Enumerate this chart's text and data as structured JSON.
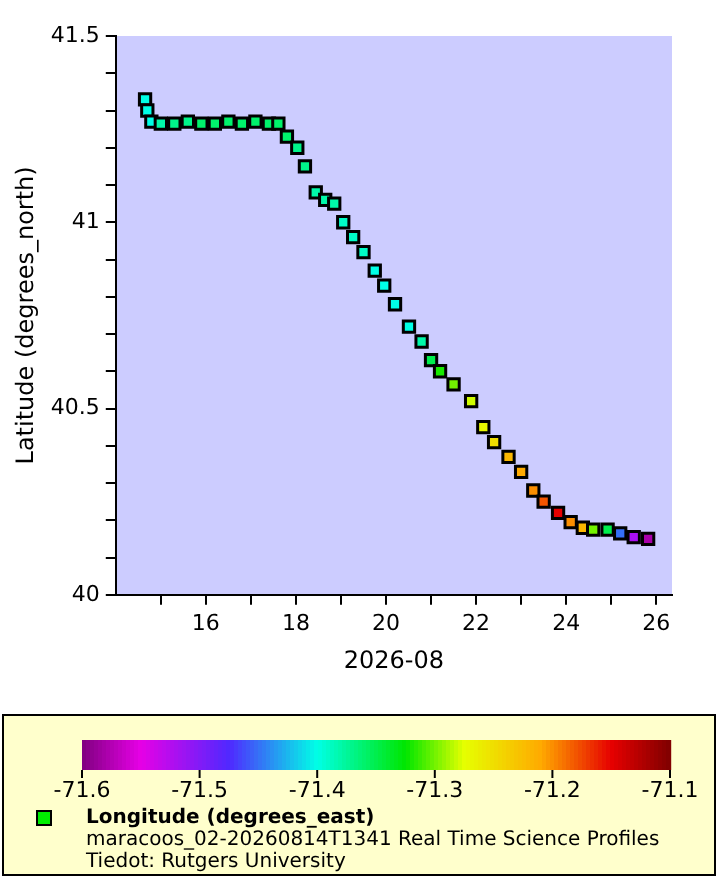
{
  "chart_data": {
    "type": "scatter",
    "xlabel": "2026-08",
    "ylabel": "Latitude (degrees_north)",
    "clabel": "Longitude (degrees_east)",
    "annotations": [
      "maracoos_02-20260814T1341 Real Time Science Profiles",
      "Tiedot: Rutgers University"
    ],
    "x": [
      14.65,
      14.7,
      14.79,
      15.0,
      15.3,
      15.6,
      15.9,
      16.2,
      16.5,
      16.8,
      17.1,
      17.4,
      17.61,
      17.8,
      18.03,
      18.2,
      18.44,
      18.65,
      18.85,
      19.05,
      19.27,
      19.5,
      19.75,
      19.96,
      20.2,
      20.51,
      20.79,
      21.0,
      21.2,
      21.5,
      21.89,
      22.16,
      22.4,
      22.72,
      23.0,
      23.27,
      23.5,
      23.82,
      24.1,
      24.37,
      24.6,
      24.92,
      25.2,
      25.5,
      25.82
    ],
    "values": [
      41.33,
      41.3,
      41.27,
      41.265,
      41.265,
      41.27,
      41.265,
      41.265,
      41.27,
      41.265,
      41.27,
      41.265,
      41.265,
      41.23,
      41.2,
      41.15,
      41.08,
      41.06,
      41.05,
      41.0,
      40.96,
      40.92,
      40.87,
      40.83,
      40.78,
      40.72,
      40.68,
      40.63,
      40.6,
      40.565,
      40.52,
      40.45,
      40.41,
      40.37,
      40.33,
      40.28,
      40.25,
      40.22,
      40.195,
      40.18,
      40.175,
      40.175,
      40.165,
      40.155,
      40.15
    ],
    "cvalues": [
      -71.4,
      -71.4,
      -71.4,
      -71.38,
      -71.37,
      -71.37,
      -71.36,
      -71.36,
      -71.36,
      -71.36,
      -71.36,
      -71.36,
      -71.36,
      -71.36,
      -71.37,
      -71.37,
      -71.38,
      -71.38,
      -71.38,
      -71.39,
      -71.39,
      -71.39,
      -71.4,
      -71.4,
      -71.4,
      -71.4,
      -71.38,
      -71.35,
      -71.32,
      -71.3,
      -71.28,
      -71.27,
      -71.25,
      -71.22,
      -71.21,
      -71.2,
      -71.18,
      -71.15,
      -71.2,
      -71.22,
      -71.3,
      -71.35,
      -71.45,
      -71.52,
      -71.58
    ],
    "xlim": [
      14,
      26.35
    ],
    "xticks": [
      {
        "value": 15,
        "label": null
      },
      16,
      {
        "value": 17,
        "label": null
      },
      18,
      {
        "value": 19,
        "label": null
      },
      20,
      {
        "value": 21,
        "label": null
      },
      22,
      {
        "value": 23,
        "label": null
      },
      24,
      {
        "value": 25,
        "label": null
      },
      26
    ],
    "ylim": [
      40,
      41.5
    ],
    "yticks": [
      40,
      {
        "value": 40.1,
        "label": null
      },
      {
        "value": 40.2,
        "label": null
      },
      {
        "value": 40.3,
        "label": null
      },
      {
        "value": 40.4,
        "label": null
      },
      40.5,
      {
        "value": 40.6,
        "label": null
      },
      {
        "value": 40.7,
        "label": null
      },
      {
        "value": 40.8,
        "label": null
      },
      {
        "value": 40.9,
        "label": null
      },
      41,
      {
        "value": 41.1,
        "label": null
      },
      {
        "value": 41.2,
        "label": null
      },
      {
        "value": 41.3,
        "label": null
      },
      {
        "value": 41.4,
        "label": null
      },
      41.5
    ],
    "clim": [
      -71.6,
      -71.1
    ],
    "cticks": [
      -71.6,
      -71.5,
      -71.4,
      -71.3,
      -71.2,
      -71.1
    ],
    "marker": "square",
    "grid": false,
    "legend": false
  }
}
